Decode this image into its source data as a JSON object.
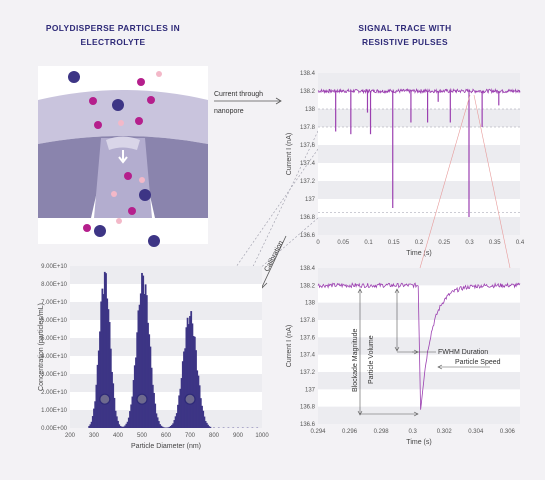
{
  "headings": {
    "left": [
      "POLYDISPERSE PARTICLES IN",
      "ELECTROLYTE"
    ],
    "right": [
      "SIGNAL TRACE WITH",
      "RESISTIVE PULSES"
    ]
  },
  "arrows": {
    "current_line1": "Current through",
    "current_line2": "nanopore",
    "calibration": "Calibration"
  },
  "annotations": {
    "blockade_magnitude": "Blockade Magnitude",
    "particle_volume": "Particle Volume",
    "fwhm_duration": "FWHM Duration",
    "particle_speed": "Particle Speed"
  },
  "colors": {
    "heading": "#2e2a78",
    "trace": "#9b3fb0",
    "bar": "#3d3585",
    "pore_dark": "#8a84ad",
    "pore_light": "#c9c4dd"
  },
  "chart_data": [
    {
      "type": "line",
      "name": "signal_trace_full",
      "xlabel": "Time (s)",
      "ylabel": "Current I (nA)",
      "xlim": [
        0,
        0.4
      ],
      "ylim": [
        136.6,
        138.4
      ],
      "xticks": [
        "0",
        "0.05",
        "0.1",
        "0.15",
        "0.2",
        "0.25",
        "0.3",
        "0.35",
        "0.4"
      ],
      "yticks": [
        "136.6",
        "136.8",
        "137",
        "137.2",
        "137.4",
        "137.6",
        "137.8",
        "138",
        "138.2",
        "138.4"
      ],
      "baseline": 138.2,
      "dashed_levels": [
        138.0,
        137.8,
        136.85
      ],
      "pulses": [
        {
          "t": 0.035,
          "depth": 137.75
        },
        {
          "t": 0.065,
          "depth": 137.72
        },
        {
          "t": 0.098,
          "depth": 137.96
        },
        {
          "t": 0.104,
          "depth": 137.72
        },
        {
          "t": 0.148,
          "depth": 136.9
        },
        {
          "t": 0.184,
          "depth": 137.85
        },
        {
          "t": 0.217,
          "depth": 137.85
        },
        {
          "t": 0.238,
          "depth": 138.08
        },
        {
          "t": 0.262,
          "depth": 137.85
        },
        {
          "t": 0.299,
          "depth": 136.8
        },
        {
          "t": 0.325,
          "depth": 137.8
        },
        {
          "t": 0.358,
          "depth": 138.04
        }
      ]
    },
    {
      "type": "line",
      "name": "single_pulse_zoom",
      "xlabel": "Time (s)",
      "ylabel": "Current I (nA)",
      "xlim": [
        0.294,
        0.3068
      ],
      "ylim": [
        136.6,
        138.4
      ],
      "xticks": [
        "0.294",
        "0.296",
        "0.298",
        "0.3",
        "0.302",
        "0.304",
        "0.306"
      ],
      "yticks": [
        "136.6",
        "136.8",
        "137",
        "137.2",
        "137.4",
        "137.6",
        "137.8",
        "138",
        "138.2",
        "138.4"
      ],
      "baseline": 138.2,
      "pulse_time": 0.3005,
      "pulse_min": 136.75
    },
    {
      "type": "bar",
      "name": "size_distribution",
      "xlabel": "Particle Diameter (nm)",
      "ylabel": "Concentration (particles/mL)",
      "xlim": [
        200,
        1000
      ],
      "ylim": [
        0,
        90000000000.0
      ],
      "xticks": [
        "200",
        "300",
        "400",
        "500",
        "600",
        "700",
        "800",
        "900",
        "1000"
      ],
      "yticks": [
        "0.00E+00",
        "1.00E+10",
        "2.00E+10",
        "3.00E+10",
        "4.00E+10",
        "5.00E+10",
        "6.00E+10",
        "7.00E+10",
        "8.00E+10",
        "9.00E+10"
      ],
      "peaks": [
        {
          "center": 345,
          "height": 89000000000.0,
          "width": 22
        },
        {
          "center": 505,
          "height": 88000000000.0,
          "width": 26
        },
        {
          "center": 700,
          "height": 66000000000.0,
          "width": 28
        }
      ],
      "markers": [
        300,
        500,
        700
      ]
    }
  ]
}
